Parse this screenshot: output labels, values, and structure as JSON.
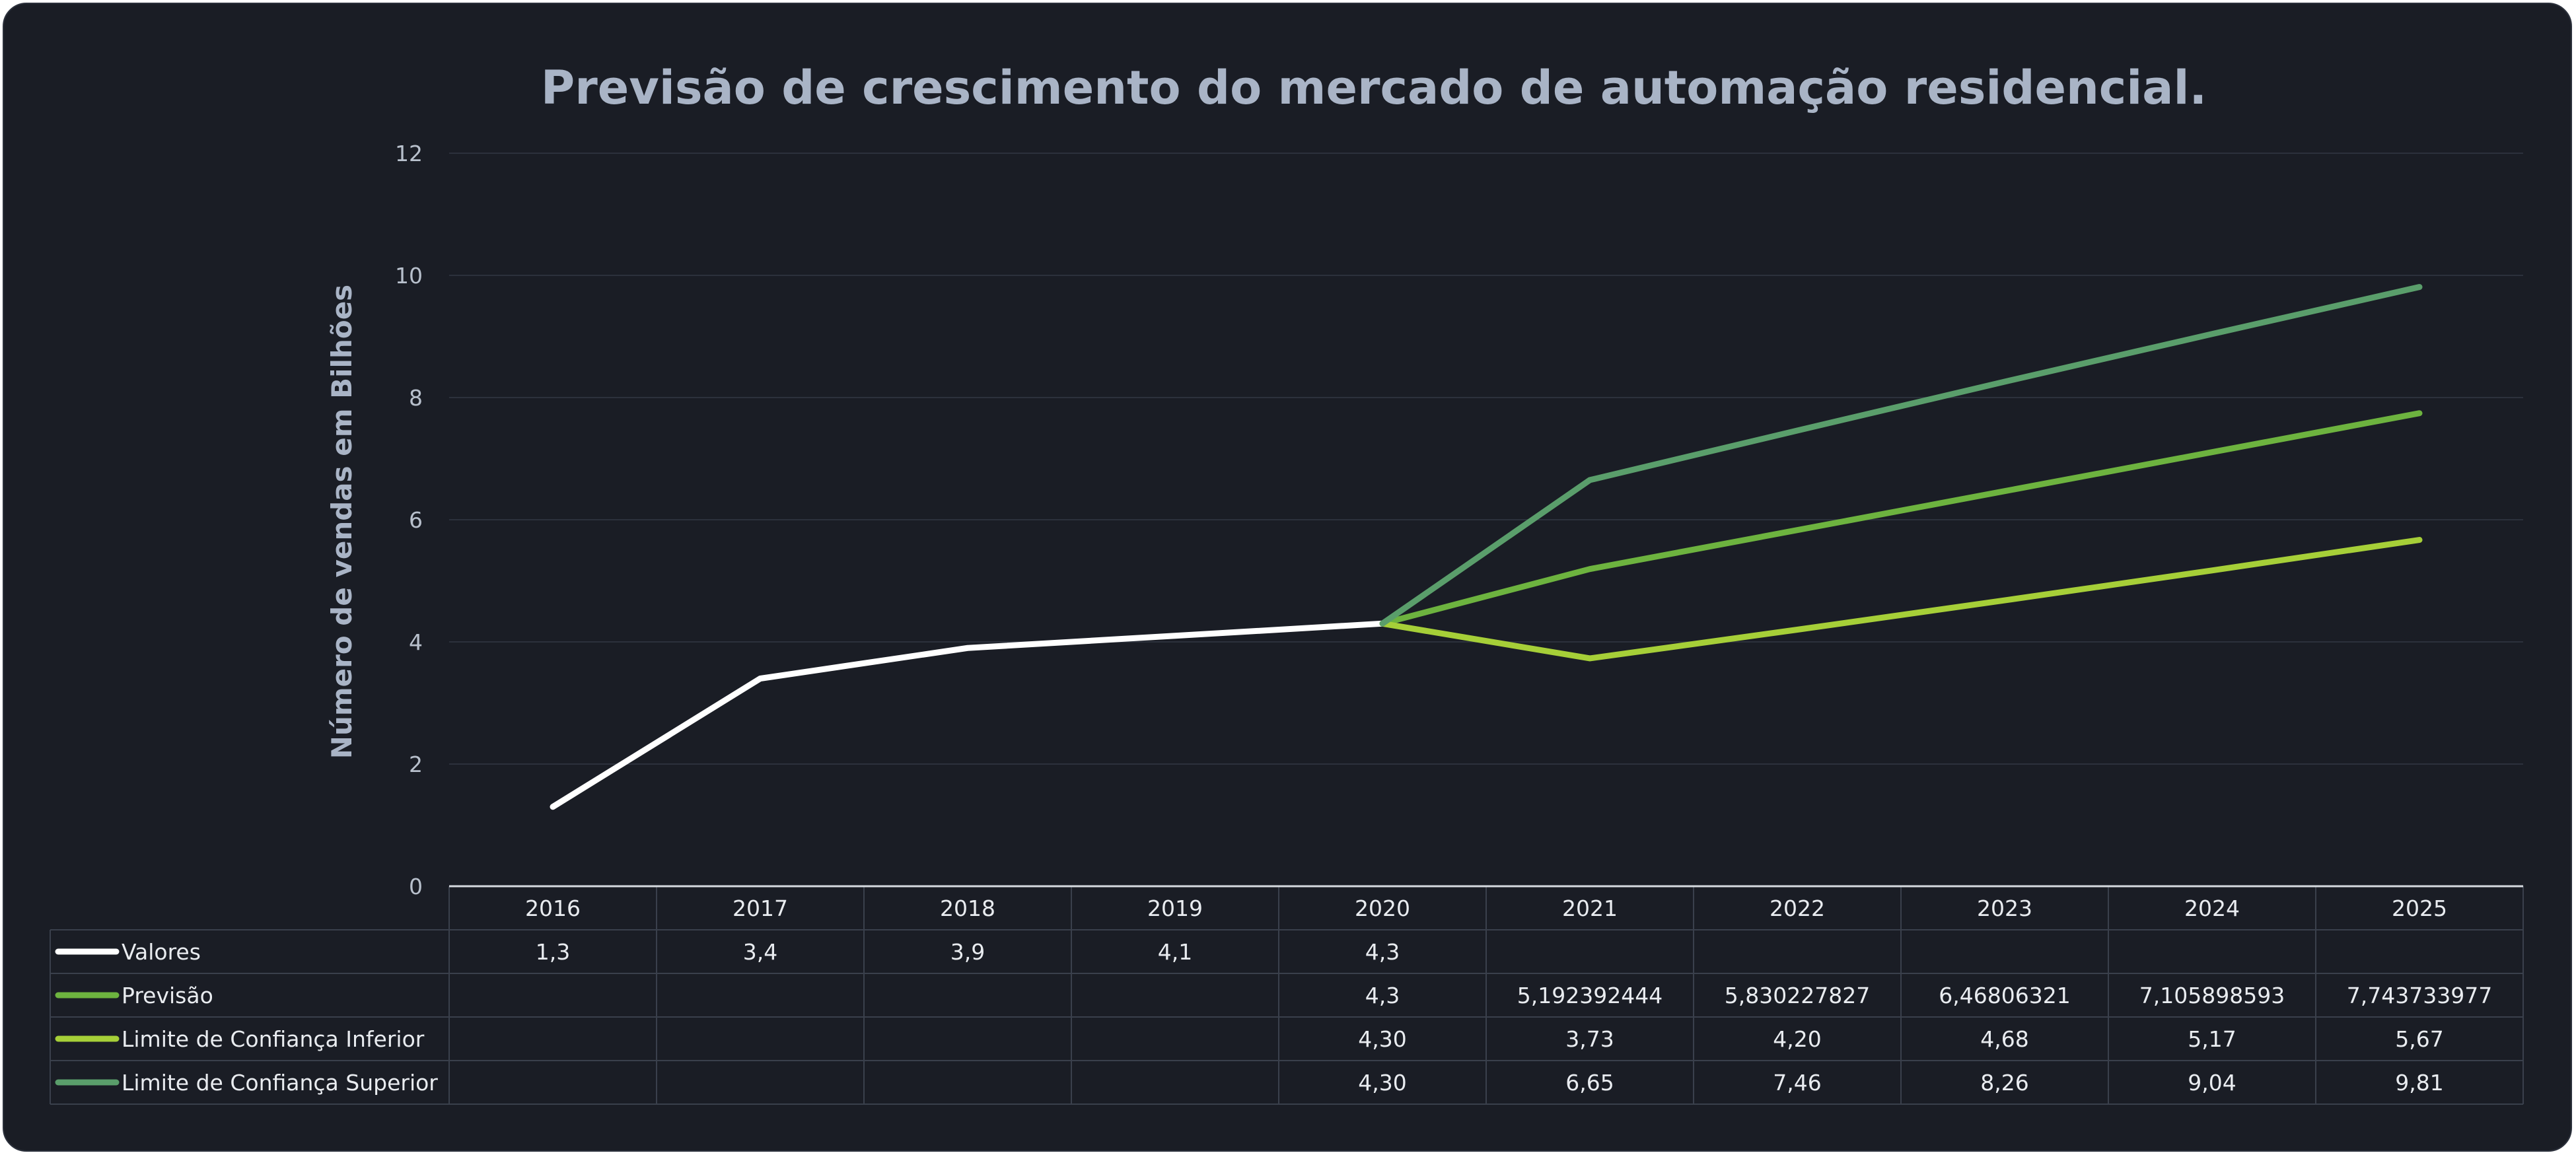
{
  "chart_data": {
    "type": "line",
    "title": "Previsão de crescimento do mercado de automação residencial.",
    "ylabel": "Número de vendas em Bilhões",
    "xlabel": "",
    "ylim": [
      0,
      12
    ],
    "yticks": [
      "0",
      "2",
      "4",
      "6",
      "8",
      "10",
      "12"
    ],
    "grid": true,
    "legend": "data-table-bottom",
    "categories": [
      "2016",
      "2017",
      "2018",
      "2019",
      "2020",
      "2021",
      "2022",
      "2023",
      "2024",
      "2025"
    ],
    "series": [
      {
        "name": "Valores",
        "color": "#ffffff",
        "values": [
          1.3,
          3.4,
          3.9,
          4.1,
          4.3,
          null,
          null,
          null,
          null,
          null
        ],
        "labels": [
          "1,3",
          "3,4",
          "3,9",
          "4,1",
          "4,3",
          "",
          "",
          "",
          "",
          ""
        ]
      },
      {
        "name": "Previsão",
        "color": "#6db33f",
        "values": [
          null,
          null,
          null,
          null,
          4.3,
          5.192392444,
          5.830227827,
          6.46806321,
          7.105898593,
          7.743733977
        ],
        "labels": [
          "",
          "",
          "",
          "",
          "4,3",
          "5,192392444",
          "5,830227827",
          "6,46806321",
          "7,105898593",
          "7,743733977"
        ]
      },
      {
        "name": "Limite de Confiança Inferior",
        "color": "#a6cf38",
        "values": [
          null,
          null,
          null,
          null,
          4.3,
          3.73,
          4.2,
          4.68,
          5.17,
          5.67
        ],
        "labels": [
          "",
          "",
          "",
          "",
          "4,30",
          "3,73",
          "4,20",
          "4,68",
          "5,17",
          "5,67"
        ]
      },
      {
        "name": "Limite de Confiança Superior",
        "color": "#5a9e6b",
        "values": [
          null,
          null,
          null,
          null,
          4.3,
          6.65,
          7.46,
          8.26,
          9.04,
          9.81
        ],
        "labels": [
          "",
          "",
          "",
          "",
          "4,30",
          "6,65",
          "7,46",
          "8,26",
          "9,04",
          "9,81"
        ]
      }
    ]
  }
}
